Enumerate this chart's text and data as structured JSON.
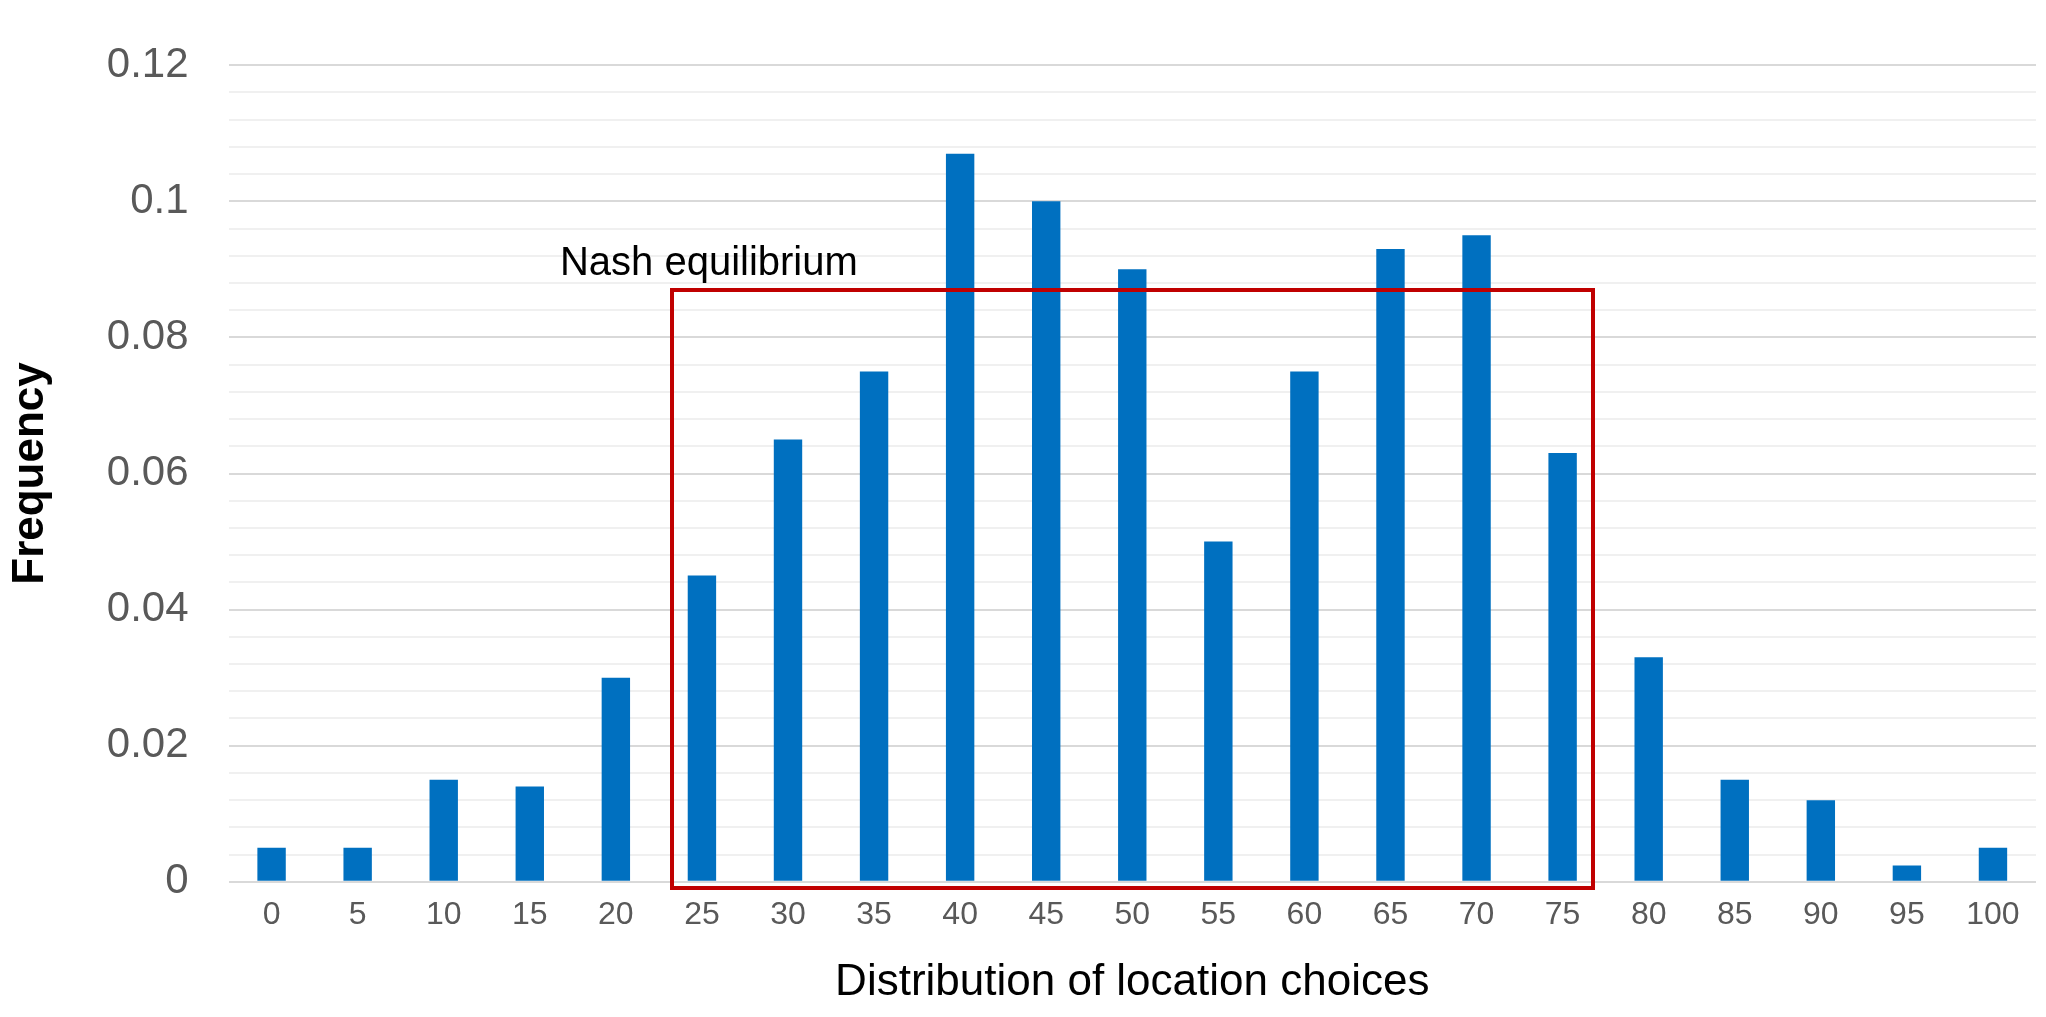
{
  "chart_data": {
    "type": "bar",
    "xlabel": "Distribution of location choices",
    "ylabel": "Frequency",
    "categories": [
      "0",
      "5",
      "10",
      "15",
      "20",
      "25",
      "30",
      "35",
      "40",
      "45",
      "50",
      "55",
      "60",
      "65",
      "70",
      "75",
      "80",
      "85",
      "90",
      "95",
      "100"
    ],
    "values": [
      0.005,
      0.005,
      0.015,
      0.014,
      0.03,
      0.045,
      0.065,
      0.075,
      0.107,
      0.1,
      0.09,
      0.05,
      0.075,
      0.093,
      0.095,
      0.063,
      0.033,
      0.015,
      0.012,
      0.0024,
      0.005
    ],
    "color": "#0070c0",
    "ylim": [
      0,
      0.12
    ],
    "yticks": [
      0,
      {
        "value": 0.004,
        "label": null
      },
      {
        "value": 0.008,
        "label": null
      },
      {
        "value": 0.012,
        "label": null
      },
      {
        "value": 0.016,
        "label": null
      },
      0.02,
      {
        "value": 0.024,
        "label": null
      },
      {
        "value": 0.028,
        "label": null
      },
      {
        "value": 0.032,
        "label": null
      },
      {
        "value": 0.036,
        "label": null
      },
      0.04,
      {
        "value": 0.044,
        "label": null
      },
      {
        "value": 0.048,
        "label": null
      },
      {
        "value": 0.052,
        "label": null
      },
      {
        "value": 0.056,
        "label": null
      },
      0.06,
      {
        "value": 0.064,
        "label": null
      },
      {
        "value": 0.068,
        "label": null
      },
      {
        "value": 0.072,
        "label": null
      },
      {
        "value": 0.076,
        "label": null
      },
      0.08,
      {
        "value": 0.084,
        "label": null
      },
      {
        "value": 0.088,
        "label": null
      },
      {
        "value": 0.092,
        "label": null
      },
      {
        "value": 0.096,
        "label": null
      },
      0.1,
      {
        "value": 0.104,
        "label": null
      },
      {
        "value": 0.108,
        "label": null
      },
      {
        "value": 0.112,
        "label": null
      },
      {
        "value": 0.116,
        "label": null
      },
      0.12
    ],
    "grid": "y",
    "annotations": [
      "Nash equilibrium"
    ]
  }
}
